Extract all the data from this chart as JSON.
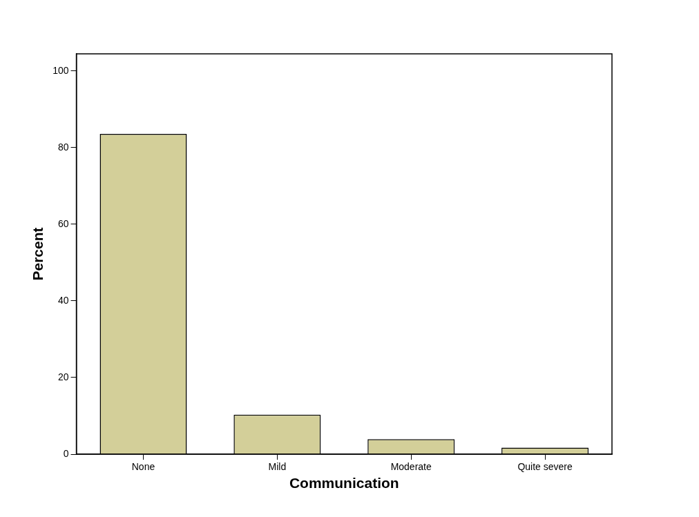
{
  "chart_data": {
    "type": "bar",
    "xlabel": "Communication",
    "ylabel": "Percent",
    "categories": [
      "None",
      "Mild",
      "Moderate",
      "Quite severe"
    ],
    "values": [
      83.6,
      10.3,
      3.9,
      1.7
    ],
    "color": "#d3cf99",
    "ylim": [
      0,
      104.5
    ],
    "yticks": [
      0,
      20,
      40,
      60,
      80,
      100
    ],
    "grid": false,
    "legend": false
  }
}
